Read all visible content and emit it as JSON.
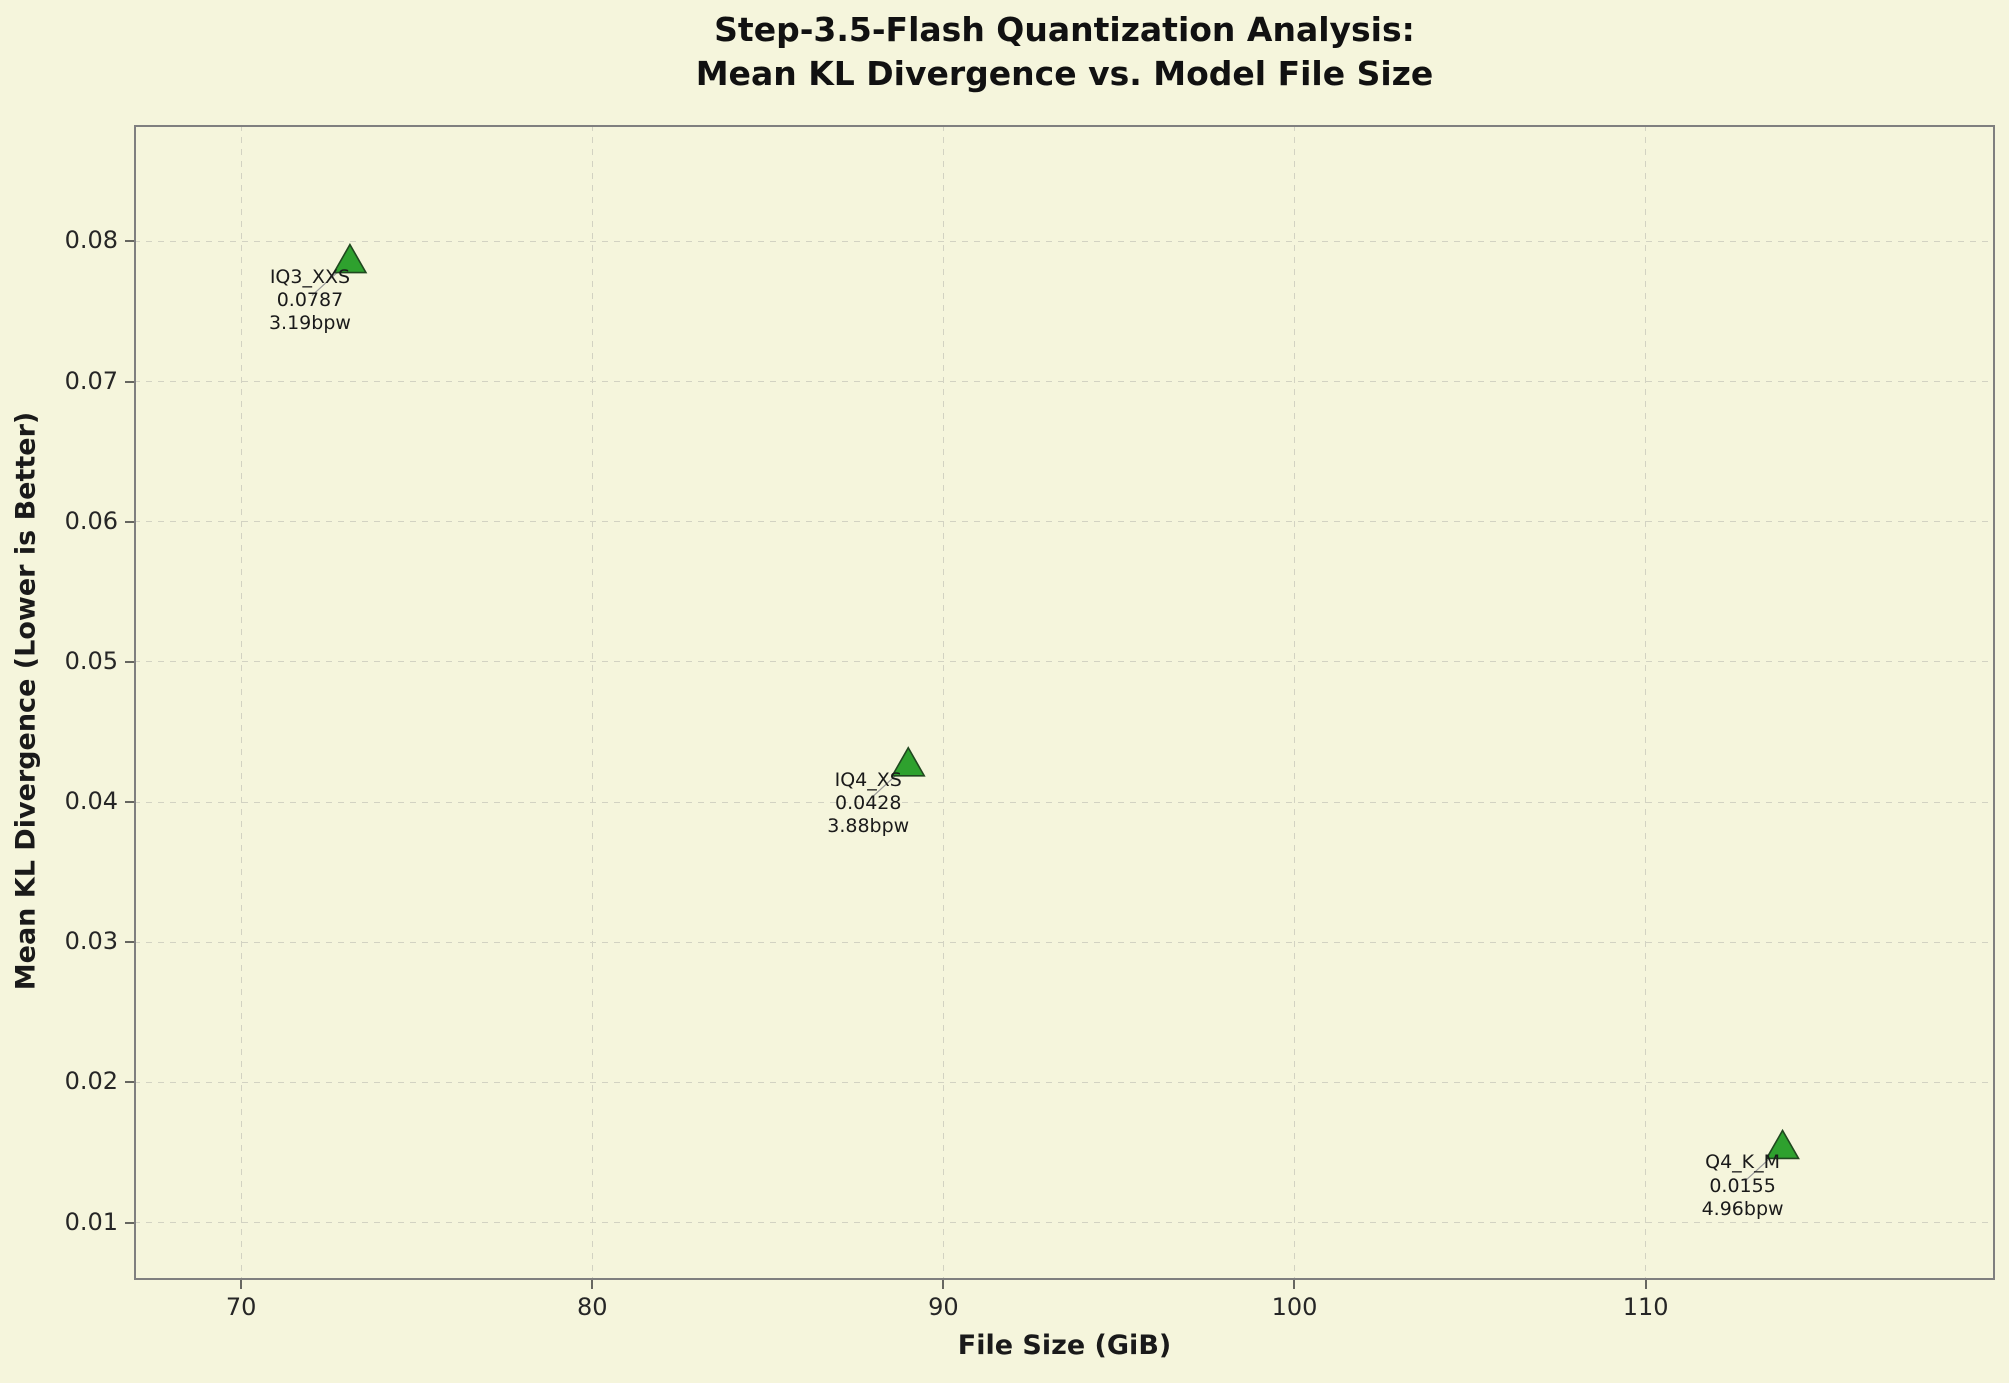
{
  "chart_data": {
    "type": "scatter",
    "title_lines": [
      "Step-3.5-Flash Quantization Analysis:",
      "Mean KL Divergence vs. Model File Size"
    ],
    "title": "Step-3.5-Flash Quantization Analysis: Mean KL Divergence vs. Model File Size",
    "xlabel": "File Size (GiB)",
    "ylabel": "Mean KL Divergence (Lower is Better)",
    "xlim": [
      66.95,
      119.95
    ],
    "ylim": [
      0.0059,
      0.0883
    ],
    "x_ticks": [
      70,
      80,
      90,
      100,
      110
    ],
    "y_ticks": [
      0.01,
      0.02,
      0.03,
      0.04,
      0.05,
      0.06,
      0.07,
      0.08
    ],
    "grid": true,
    "legend": "none",
    "marker": "triangle-up",
    "colors": {
      "background": "#f5f5dc",
      "marker_fill": "#2ea12e",
      "marker_edge": "#20481f",
      "spine": "#7f7f7f",
      "grid": "#d2d2c2",
      "leader_line": "#999999",
      "text": "#262626"
    },
    "points": [
      {
        "name": "IQ3_XXS",
        "x": 73.1,
        "y": 0.0787,
        "kl_label": "0.0787",
        "bpw_label": "3.19bpw",
        "annotation": [
          "IQ3_XXS",
          "0.0787",
          "3.19bpw"
        ]
      },
      {
        "name": "IQ4_XS",
        "x": 89.0,
        "y": 0.0428,
        "kl_label": "0.0428",
        "bpw_label": "3.88bpw",
        "annotation": [
          "IQ4_XS",
          "0.0428",
          "3.88bpw"
        ]
      },
      {
        "name": "Q4_K_M",
        "x": 113.9,
        "y": 0.0155,
        "kl_label": "0.0155",
        "bpw_label": "4.96bpw",
        "annotation": [
          "Q4_K_M",
          "0.0155",
          "4.96bpw"
        ]
      }
    ]
  }
}
